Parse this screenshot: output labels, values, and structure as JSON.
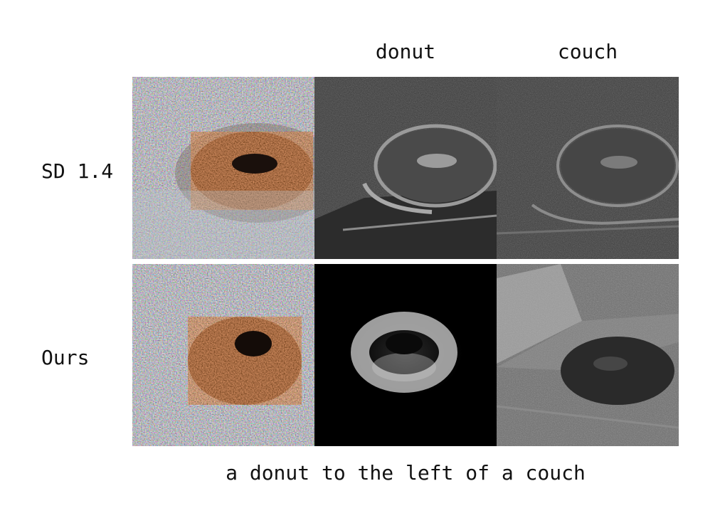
{
  "column_labels": [
    "donut",
    "couch"
  ],
  "row_labels": [
    "SD 1.4",
    "Ours"
  ],
  "caption": "a donut to the left of a couch",
  "panels": [
    {
      "row": "SD 1.4",
      "kind": "generated-image",
      "subject": "donut on couch"
    },
    {
      "row": "SD 1.4",
      "kind": "attention-map",
      "token": "donut"
    },
    {
      "row": "SD 1.4",
      "kind": "attention-map",
      "token": "couch"
    },
    {
      "row": "Ours",
      "kind": "generated-image",
      "subject": "donut on couch"
    },
    {
      "row": "Ours",
      "kind": "attention-map",
      "token": "donut"
    },
    {
      "row": "Ours",
      "kind": "attention-map",
      "token": "couch"
    }
  ]
}
